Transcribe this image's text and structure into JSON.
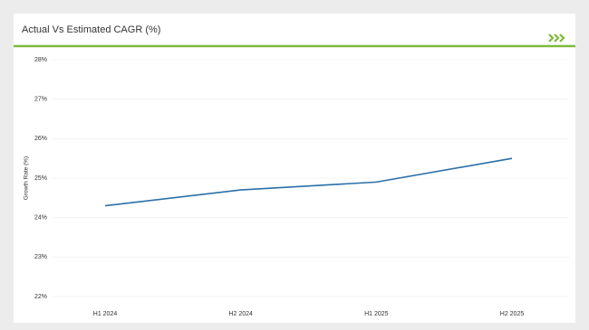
{
  "chart_data": {
    "type": "line",
    "title": "Actual Vs Estimated CAGR (%)",
    "y_label": "Growth Rate (%)",
    "categories": [
      "H1 2024",
      "H2 2024",
      "H1 2025",
      "H2 2025"
    ],
    "values": [
      24.3,
      24.7,
      24.9,
      25.5
    ],
    "color": "#2a6fa8",
    "ylim": [
      22,
      28
    ],
    "yticks": [
      {
        "value": 22,
        "label": "22%"
      },
      {
        "value": 23,
        "label": "23%"
      },
      {
        "value": 24,
        "label": "24%"
      },
      {
        "value": 25,
        "label": "25%"
      },
      {
        "value": 26,
        "label": "26%"
      },
      {
        "value": 27,
        "label": "27%"
      },
      {
        "value": 28,
        "label": "28%"
      }
    ],
    "grid": true
  }
}
